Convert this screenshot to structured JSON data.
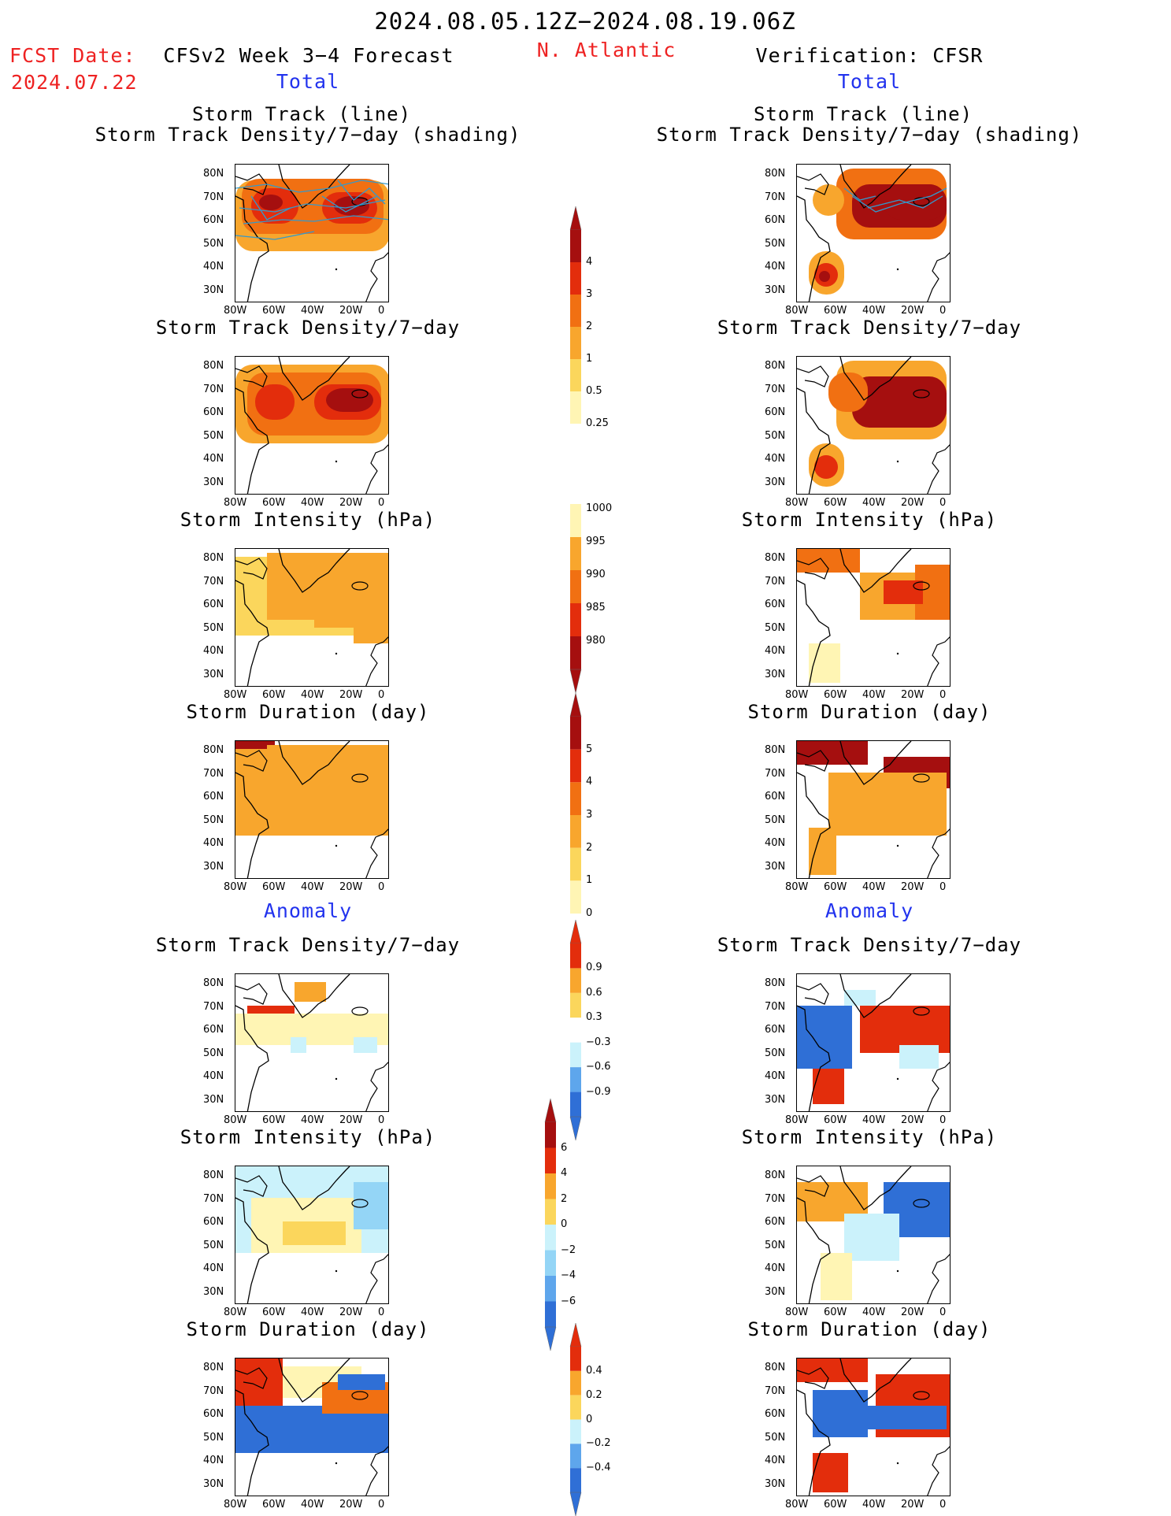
{
  "header": {
    "period": "2024.08.05.12Z−2024.08.19.06Z",
    "fcst_label": "FCST Date:",
    "fcst_date": "2024.07.22",
    "left_title": "CFSv2 Week 3−4 Forecast",
    "region": "N. Atlantic",
    "right_title": "Verification: CFSR"
  },
  "sections": {
    "total": "Total",
    "anomaly": "Anomaly"
  },
  "panel_titles": {
    "track_line": "Storm Track (line)",
    "track_shading": "Storm Track Density/7−day (shading)",
    "density": "Storm Track Density/7−day",
    "intensity": "Storm Intensity (hPa)",
    "duration": "Storm Duration (day)"
  },
  "axes": {
    "lat": [
      "80N",
      "70N",
      "60N",
      "50N",
      "40N",
      "30N"
    ],
    "lon": [
      "80W",
      "60W",
      "40W",
      "20W",
      "0"
    ]
  },
  "colorbars": {
    "density_total": [
      "4",
      "3",
      "2",
      "1",
      "0.5",
      "0.25"
    ],
    "intensity_total": [
      "1000",
      "995",
      "990",
      "985",
      "980"
    ],
    "duration_total": [
      "5",
      "4",
      "3",
      "2",
      "1",
      "0"
    ],
    "density_anom": [
      "0.9",
      "0.6",
      "0.3",
      "−0.3",
      "−0.6",
      "−0.9"
    ],
    "intensity_anom": [
      "6",
      "4",
      "2",
      "0",
      "−2",
      "−4",
      "−6"
    ],
    "duration_anom": [
      "0.4",
      "0.2",
      "0",
      "−0.2",
      "−0.4"
    ]
  },
  "colors": {
    "warm": [
      "#fff5b4",
      "#fbd65c",
      "#f8a62d",
      "#f17012",
      "#e32d0c",
      "#a50f0f"
    ],
    "cool": [
      "#cbf2fb",
      "#94d5f6",
      "#5ea6ec",
      "#2f6fd6",
      "#1f4bb8"
    ],
    "track_line": "#3399cc"
  }
}
